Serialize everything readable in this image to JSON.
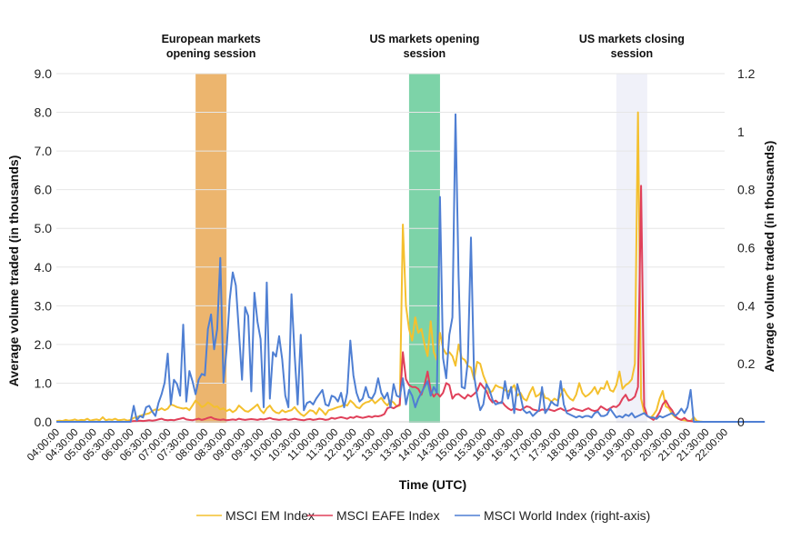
{
  "chart_data": {
    "type": "line",
    "title": "",
    "xlabel": "Time (UTC)",
    "ylabel": "Average volume traded (in thousands)",
    "y2label": "Average volume traded (in thousands)",
    "ylim": [
      0,
      9.0
    ],
    "y2lim": [
      0,
      1.2
    ],
    "yticks": [
      "0.0",
      "1.0",
      "2.0",
      "3.0",
      "4.0",
      "5.0",
      "6.0",
      "7.0",
      "8.0",
      "9.0"
    ],
    "y2ticks": [
      "0",
      "0.2",
      "0.4",
      "0.6",
      "0.8",
      "1",
      "1.2"
    ],
    "grid": true,
    "legend_position": "bottom",
    "xticks": [
      "04:00:00",
      "04:30:00",
      "05:00:00",
      "05:30:00",
      "06:00:00",
      "06:30:00",
      "07:00:00",
      "07:30:00",
      "08:00:00",
      "08:30:00",
      "09:00:00",
      "09:30:00",
      "10:00:00",
      "10:30:00",
      "11:00:00",
      "11:30:00",
      "12:00:00",
      "12:30:00",
      "13:00:00",
      "13:30:00",
      "14:00:00",
      "14:30:00",
      "15:00:00",
      "15:30:00",
      "16:00:00",
      "16:30:00",
      "17:00:00",
      "17:30:00",
      "18:00:00",
      "18:30:00",
      "19:00:00",
      "19:30:00",
      "20:00:00",
      "20:30:00",
      "21:00:00",
      "21:30:00",
      "22:00:00"
    ],
    "x_start_minutes": 240,
    "x_end_minutes": 1320,
    "x_step_minutes": 5,
    "bands": [
      {
        "label": [
          "European markets",
          "opening session"
        ],
        "start": "07:45:00",
        "end": "08:35:00",
        "color": "#ECB56E"
      },
      {
        "label": [
          "US markets opening",
          "session"
        ],
        "start": "13:30:00",
        "end": "14:20:00",
        "color": "#7DD3A8"
      },
      {
        "label": [
          "US markets closing",
          "session"
        ],
        "start": "19:05:00",
        "end": "19:55:00",
        "color": "#F0F1F9"
      }
    ],
    "series": [
      {
        "name": "MSCI EM Index",
        "axis": "left",
        "color": "#F4C02E",
        "values": [
          0.02,
          0.03,
          0.02,
          0.05,
          0.03,
          0.04,
          0.06,
          0.03,
          0.05,
          0.04,
          0.08,
          0.03,
          0.05,
          0.06,
          0.04,
          0.12,
          0.04,
          0.06,
          0.05,
          0.08,
          0.04,
          0.05,
          0.06,
          0.03,
          0.05,
          0.1,
          0.12,
          0.15,
          0.18,
          0.2,
          0.22,
          0.28,
          0.32,
          0.3,
          0.35,
          0.3,
          0.34,
          0.45,
          0.42,
          0.38,
          0.36,
          0.34,
          0.36,
          0.3,
          0.42,
          0.55,
          0.48,
          0.38,
          0.42,
          0.5,
          0.45,
          0.38,
          0.4,
          0.32,
          0.35,
          0.28,
          0.32,
          0.25,
          0.3,
          0.42,
          0.35,
          0.28,
          0.26,
          0.32,
          0.38,
          0.45,
          0.3,
          0.22,
          0.35,
          0.42,
          0.3,
          0.24,
          0.22,
          0.3,
          0.25,
          0.28,
          0.3,
          0.38,
          0.28,
          0.2,
          0.15,
          0.22,
          0.3,
          0.28,
          0.2,
          0.35,
          0.28,
          0.18,
          0.3,
          0.32,
          0.35,
          0.38,
          0.4,
          0.45,
          0.42,
          0.55,
          0.48,
          0.38,
          0.35,
          0.45,
          0.5,
          0.52,
          0.58,
          0.48,
          0.55,
          0.62,
          0.5,
          0.42,
          0.55,
          0.5,
          0.4,
          0.42,
          5.1,
          3.0,
          2.4,
          2.1,
          2.7,
          2.3,
          2.4,
          2.0,
          1.7,
          2.6,
          1.8,
          1.6,
          2.3,
          1.9,
          1.75,
          1.8,
          1.7,
          1.45,
          2.0,
          1.65,
          1.6,
          1.45,
          1.4,
          1.1,
          1.55,
          1.5,
          1.2,
          1.0,
          0.75,
          0.8,
          0.95,
          0.9,
          0.88,
          0.82,
          0.78,
          0.85,
          0.95,
          0.68,
          0.75,
          0.6,
          0.55,
          0.75,
          0.9,
          0.65,
          0.7,
          0.8,
          0.62,
          0.6,
          0.52,
          0.6,
          0.55,
          0.7,
          0.85,
          0.7,
          0.6,
          0.55,
          0.7,
          1.0,
          0.75,
          0.65,
          0.7,
          0.78,
          0.9,
          0.72,
          0.88,
          0.85,
          1.05,
          0.82,
          0.78,
          0.95,
          1.3,
          0.85,
          0.95,
          1.0,
          1.1,
          1.5,
          8.0,
          0.6,
          0.25,
          0.15,
          0.1,
          0.18,
          0.3,
          0.6,
          0.8,
          0.4,
          0.35,
          0.2,
          0.12,
          0.08,
          0.05,
          0.04,
          0.03,
          0.02,
          0.12,
          0.02,
          0.01,
          0.0,
          0.0,
          0.0,
          0.0,
          0.0,
          0.0
        ]
      },
      {
        "name": "MSCI EAFE Index",
        "axis": "left",
        "color": "#E0405A",
        "values": [
          0.0,
          0.0,
          0.0,
          0.0,
          0.0,
          0.0,
          0.0,
          0.0,
          0.0,
          0.0,
          0.0,
          0.0,
          0.0,
          0.0,
          0.0,
          0.0,
          0.0,
          0.0,
          0.0,
          0.0,
          0.0,
          0.0,
          0.0,
          0.0,
          0.01,
          0.02,
          0.02,
          0.03,
          0.02,
          0.03,
          0.04,
          0.03,
          0.04,
          0.06,
          0.08,
          0.05,
          0.04,
          0.05,
          0.04,
          0.06,
          0.08,
          0.1,
          0.06,
          0.05,
          0.04,
          0.06,
          0.08,
          0.05,
          0.07,
          0.1,
          0.12,
          0.08,
          0.06,
          0.05,
          0.06,
          0.04,
          0.05,
          0.06,
          0.05,
          0.08,
          0.06,
          0.05,
          0.06,
          0.07,
          0.06,
          0.05,
          0.07,
          0.06,
          0.08,
          0.1,
          0.07,
          0.06,
          0.05,
          0.06,
          0.07,
          0.05,
          0.06,
          0.08,
          0.06,
          0.05,
          0.04,
          0.06,
          0.07,
          0.05,
          0.06,
          0.08,
          0.07,
          0.05,
          0.06,
          0.1,
          0.08,
          0.1,
          0.12,
          0.1,
          0.08,
          0.12,
          0.1,
          0.14,
          0.12,
          0.1,
          0.12,
          0.14,
          0.12,
          0.15,
          0.14,
          0.16,
          0.2,
          0.35,
          0.38,
          0.35,
          0.4,
          0.45,
          1.8,
          1.1,
          0.95,
          0.9,
          0.9,
          0.85,
          0.7,
          0.95,
          1.3,
          0.8,
          0.65,
          0.75,
          0.65,
          0.75,
          1.0,
          0.95,
          0.6,
          0.7,
          0.72,
          0.65,
          0.6,
          0.7,
          0.65,
          0.72,
          0.8,
          1.0,
          0.9,
          0.8,
          0.6,
          0.5,
          0.55,
          0.48,
          0.52,
          0.42,
          0.35,
          0.3,
          0.35,
          0.32,
          0.3,
          0.35,
          0.4,
          0.38,
          0.32,
          0.3,
          0.28,
          0.32,
          0.3,
          0.33,
          0.3,
          0.28,
          0.32,
          0.35,
          0.3,
          0.28,
          0.3,
          0.35,
          0.32,
          0.3,
          0.28,
          0.32,
          0.35,
          0.3,
          0.28,
          0.3,
          0.4,
          0.35,
          0.3,
          0.35,
          0.4,
          0.38,
          0.45,
          0.6,
          0.7,
          0.55,
          0.58,
          0.65,
          0.9,
          6.1,
          0.4,
          0.15,
          0.1,
          0.05,
          0.12,
          0.25,
          0.45,
          0.55,
          0.4,
          0.3,
          0.15,
          0.08,
          0.05,
          0.1,
          0.03,
          0.02,
          0.01,
          0.0,
          0.0,
          0.0,
          0.0,
          0.0,
          0.0,
          0.0,
          0.0,
          0.0
        ]
      },
      {
        "name": "MSCI World Index (right-axis)",
        "axis": "right",
        "color": "#4F7FD3",
        "values": [
          0.0,
          0.0,
          0.0,
          0.0,
          0.0,
          0.0,
          0.0,
          0.0,
          0.0,
          0.0,
          0.0,
          0.0,
          0.0,
          0.0,
          0.0,
          0.0,
          0.0,
          0.0,
          0.0,
          0.0,
          0.0,
          0.0,
          0.0,
          0.0,
          0.0,
          0.055,
          0.005,
          0.02,
          0.015,
          0.05,
          0.055,
          0.035,
          0.02,
          0.065,
          0.095,
          0.135,
          0.235,
          0.06,
          0.145,
          0.13,
          0.09,
          0.335,
          0.07,
          0.175,
          0.14,
          0.095,
          0.145,
          0.165,
          0.16,
          0.32,
          0.37,
          0.25,
          0.32,
          0.565,
          0.135,
          0.25,
          0.42,
          0.515,
          0.47,
          0.31,
          0.145,
          0.395,
          0.365,
          0.105,
          0.445,
          0.345,
          0.285,
          0.05,
          0.48,
          0.08,
          0.24,
          0.225,
          0.295,
          0.215,
          0.09,
          0.05,
          0.44,
          0.235,
          0.06,
          0.3,
          0.04,
          0.065,
          0.07,
          0.06,
          0.08,
          0.095,
          0.11,
          0.06,
          0.055,
          0.09,
          0.085,
          0.07,
          0.1,
          0.05,
          0.1,
          0.28,
          0.16,
          0.1,
          0.07,
          0.08,
          0.12,
          0.085,
          0.08,
          0.1,
          0.15,
          0.1,
          0.08,
          0.1,
          0.05,
          0.13,
          0.09,
          0.085,
          0.15,
          0.06,
          0.11,
          0.09,
          0.05,
          0.08,
          0.1,
          0.12,
          0.14,
          0.09,
          0.12,
          0.1,
          0.775,
          0.22,
          0.15,
          0.3,
          0.36,
          1.06,
          0.5,
          0.12,
          0.115,
          0.21,
          0.635,
          0.16,
          0.09,
          0.04,
          0.06,
          0.13,
          0.11,
          0.075,
          0.06,
          0.065,
          0.065,
          0.14,
          0.08,
          0.12,
          0.03,
          0.13,
          0.09,
          0.04,
          0.03,
          0.035,
          0.02,
          0.03,
          0.04,
          0.12,
          0.03,
          0.045,
          0.07,
          0.06,
          0.055,
          0.14,
          0.06,
          0.03,
          0.025,
          0.02,
          0.015,
          0.02,
          0.015,
          0.02,
          0.02,
          0.015,
          0.03,
          0.035,
          0.02,
          0.02,
          0.025,
          0.045,
          0.03,
          0.015,
          0.02,
          0.015,
          0.025,
          0.02,
          0.03,
          0.015,
          0.02,
          0.025,
          0.03,
          0.02,
          0.015,
          0.015,
          0.01,
          0.02,
          0.015,
          0.02,
          0.025,
          0.03,
          0.02,
          0.03,
          0.045,
          0.03,
          0.05,
          0.11,
          0.0,
          0.0,
          0.0,
          0.0,
          0.0,
          0.0,
          0.0,
          0.0,
          0.0,
          0.0,
          0.0,
          0.0,
          0.0,
          0.0,
          0.0,
          0.0,
          0.0,
          0.0,
          0.0,
          0.0,
          0.0,
          0.0,
          0.0,
          0.0
        ]
      }
    ]
  }
}
